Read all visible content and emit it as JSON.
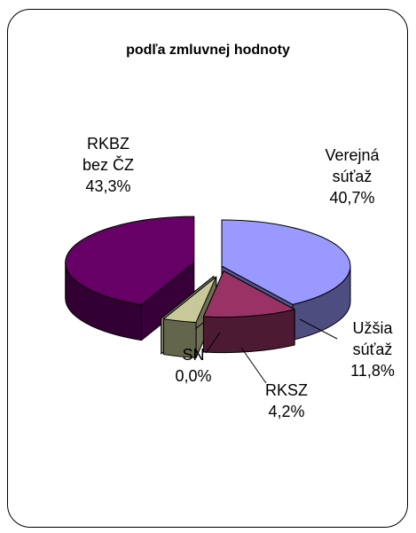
{
  "chart_data": {
    "type": "pie3d",
    "title": "podľa zmluvnej hodnoty",
    "categories": [
      "Verejná\nsúťaž",
      "Užšia\nsúťaž",
      "RKSZ",
      "SN",
      "RKBZ\nbez ČZ"
    ],
    "values": [
      40.7,
      11.8,
      4.2,
      0.0,
      43.3
    ],
    "value_labels": [
      "40,7%",
      "11,8%",
      "4,2%",
      "0,0%",
      "43,3%"
    ],
    "colors": [
      "#9999ff",
      "#993366",
      "#c8c999",
      "#ffffcc",
      "#660066"
    ]
  }
}
